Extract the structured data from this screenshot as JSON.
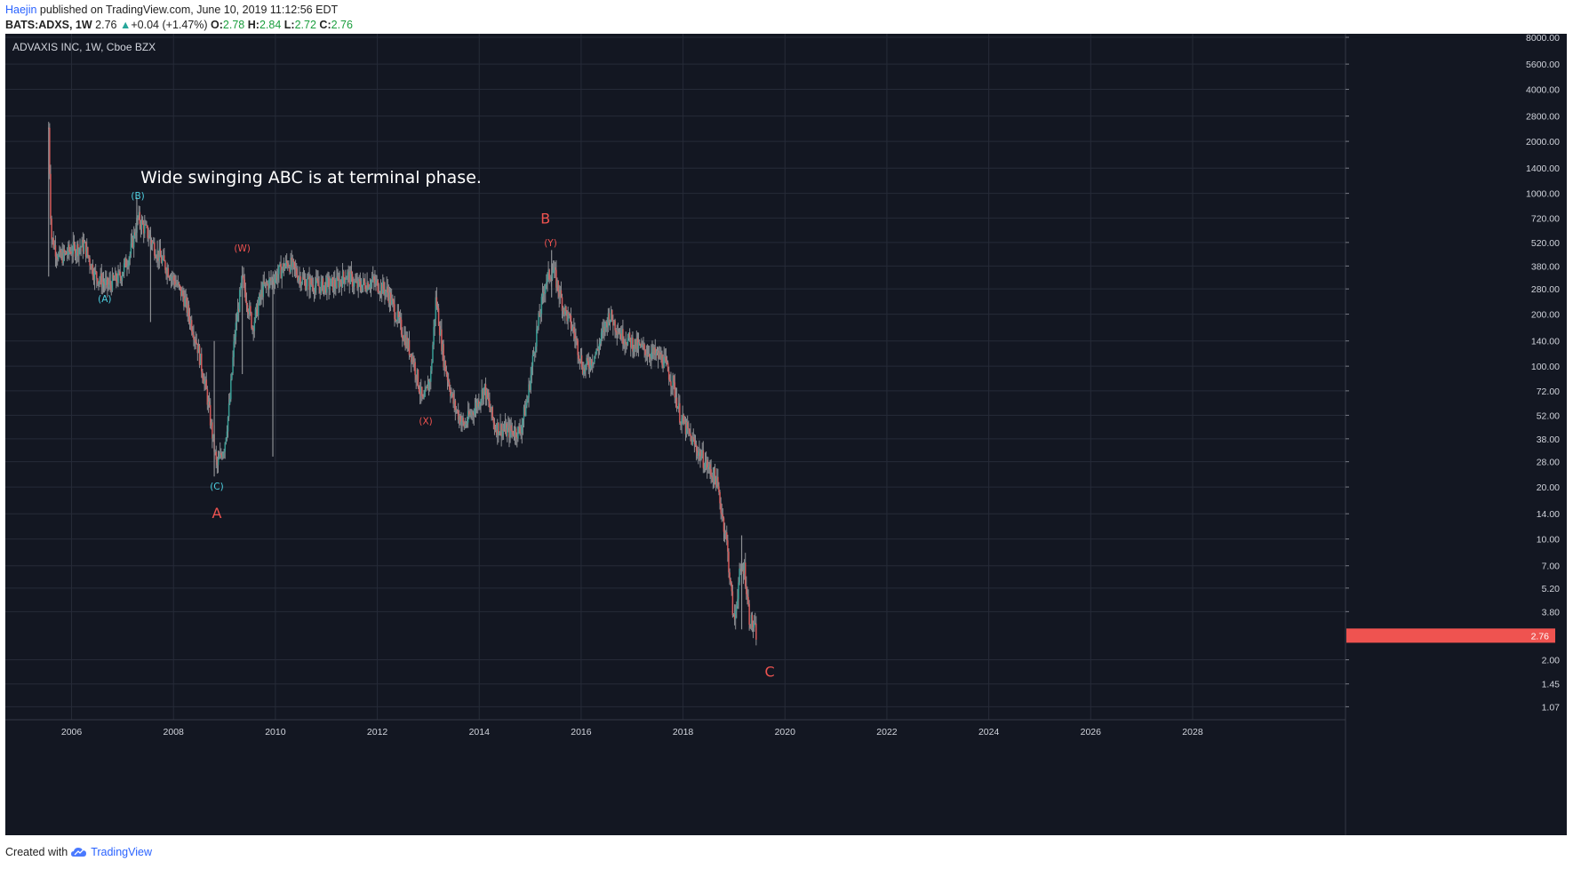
{
  "header": {
    "author": "Haejin",
    "published_text": "published on TradingView.com, June 10, 2019 11:12:56 EDT",
    "symbol": "BATS:ADXS, 1W",
    "last": "2.76",
    "change": "+0.04 (+1.47%)",
    "open_label": "O:",
    "open": "2.78",
    "high_label": "H:",
    "high": "2.84",
    "low_label": "L:",
    "low": "2.72",
    "close_label": "C:",
    "close": "2.76"
  },
  "footer": {
    "created_with": "Created with",
    "brand": "TradingView"
  },
  "colors": {
    "background": "#131722",
    "grid": "#262b38",
    "candle": "#8c8e92",
    "up_body": "#26a69a",
    "down_body": "#ef5350",
    "wave_cyan": "#4dd0e1",
    "wave_red": "#ef5350",
    "price_tag": "#ef5350"
  },
  "chart_data": {
    "type": "candlestick",
    "title": "ADVAXIS INC, 1W, Cboe BZX",
    "log_scale": true,
    "grid": true,
    "xlim": [
      2004.7,
      2031.0
    ],
    "ylim": [
      0.9,
      8000
    ],
    "x_ticks": [
      "2006",
      "2008",
      "2010",
      "2012",
      "2014",
      "2016",
      "2018",
      "2020",
      "2022",
      "2024",
      "2026",
      "2028"
    ],
    "y_ticks": [
      "8000.00",
      "5600.00",
      "4000.00",
      "2800.00",
      "2000.00",
      "1400.00",
      "1000.00",
      "720.00",
      "520.00",
      "380.00",
      "280.00",
      "200.00",
      "140.00",
      "100.00",
      "72.00",
      "52.00",
      "38.00",
      "28.00",
      "20.00",
      "14.00",
      "10.00",
      "7.00",
      "5.20",
      "3.80",
      "2.76",
      "2.00",
      "1.45",
      "1.07"
    ],
    "last_price": 2.76,
    "last_price_label": "2.76",
    "price_path": [
      [
        2005.55,
        2400
      ],
      [
        2005.6,
        560
      ],
      [
        2005.75,
        420
      ],
      [
        2006.0,
        470
      ],
      [
        2006.25,
        500
      ],
      [
        2006.45,
        340
      ],
      [
        2006.7,
        290
      ],
      [
        2006.95,
        330
      ],
      [
        2007.15,
        450
      ],
      [
        2007.3,
        720
      ],
      [
        2007.5,
        580
      ],
      [
        2007.7,
        440
      ],
      [
        2007.95,
        340
      ],
      [
        2008.2,
        250
      ],
      [
        2008.45,
        140
      ],
      [
        2008.65,
        70
      ],
      [
        2008.85,
        26
      ],
      [
        2009.0,
        35
      ],
      [
        2009.1,
        60
      ],
      [
        2009.2,
        150
      ],
      [
        2009.35,
        320
      ],
      [
        2009.55,
        170
      ],
      [
        2009.75,
        280
      ],
      [
        2010.0,
        330
      ],
      [
        2010.25,
        400
      ],
      [
        2010.55,
        310
      ],
      [
        2010.85,
        290
      ],
      [
        2011.2,
        300
      ],
      [
        2011.4,
        340
      ],
      [
        2011.6,
        290
      ],
      [
        2011.9,
        310
      ],
      [
        2012.2,
        270
      ],
      [
        2012.45,
        170
      ],
      [
        2012.7,
        110
      ],
      [
        2012.9,
        60
      ],
      [
        2013.05,
        90
      ],
      [
        2013.15,
        250
      ],
      [
        2013.3,
        110
      ],
      [
        2013.5,
        60
      ],
      [
        2013.7,
        45
      ],
      [
        2013.95,
        60
      ],
      [
        2014.1,
        75
      ],
      [
        2014.3,
        45
      ],
      [
        2014.55,
        42
      ],
      [
        2014.8,
        42
      ],
      [
        2014.95,
        65
      ],
      [
        2015.1,
        140
      ],
      [
        2015.3,
        310
      ],
      [
        2015.45,
        360
      ],
      [
        2015.65,
        220
      ],
      [
        2015.85,
        160
      ],
      [
        2016.05,
        95
      ],
      [
        2016.3,
        120
      ],
      [
        2016.55,
        200
      ],
      [
        2016.8,
        150
      ],
      [
        2017.1,
        130
      ],
      [
        2017.35,
        120
      ],
      [
        2017.6,
        110
      ],
      [
        2017.8,
        80
      ],
      [
        2017.95,
        50
      ],
      [
        2018.2,
        36
      ],
      [
        2018.45,
        27
      ],
      [
        2018.65,
        22
      ],
      [
        2018.85,
        10
      ],
      [
        2019.0,
        3.2
      ],
      [
        2019.1,
        6
      ],
      [
        2019.2,
        7
      ],
      [
        2019.3,
        3.5
      ],
      [
        2019.45,
        2.76
      ]
    ],
    "spikes": [
      [
        2005.55,
        2400,
        330
      ],
      [
        2007.28,
        950,
        520
      ],
      [
        2007.55,
        640,
        180
      ],
      [
        2008.8,
        140,
        23
      ],
      [
        2009.35,
        380,
        90
      ],
      [
        2009.95,
        340,
        30
      ],
      [
        2015.42,
        470,
        250
      ],
      [
        2019.15,
        10.5,
        3.0
      ]
    ],
    "annotations": [
      {
        "text": "Wide swinging ABC is at terminal phase.",
        "x": 2010.7,
        "y": 1150,
        "color": "white",
        "size": "large"
      },
      {
        "text": "(B)",
        "x": 2007.3,
        "y": 930,
        "color": "cyan",
        "size": "small"
      },
      {
        "text": "(A)",
        "x": 2006.65,
        "y": 235,
        "color": "cyan",
        "size": "small"
      },
      {
        "text": "(C)",
        "x": 2008.85,
        "y": 19.3,
        "color": "cyan",
        "size": "small"
      },
      {
        "text": "A",
        "x": 2008.85,
        "y": 13.2,
        "color": "red",
        "size": "large"
      },
      {
        "text": "(W)",
        "x": 2009.35,
        "y": 460,
        "color": "red",
        "size": "small"
      },
      {
        "text": "B",
        "x": 2015.3,
        "y": 670,
        "color": "red",
        "size": "large"
      },
      {
        "text": "(Y)",
        "x": 2015.4,
        "y": 495,
        "color": "red",
        "size": "small"
      },
      {
        "text": "(X)",
        "x": 2012.95,
        "y": 46,
        "color": "red",
        "size": "small"
      },
      {
        "text": "C",
        "x": 2019.7,
        "y": 1.6,
        "color": "red",
        "size": "large"
      }
    ]
  }
}
